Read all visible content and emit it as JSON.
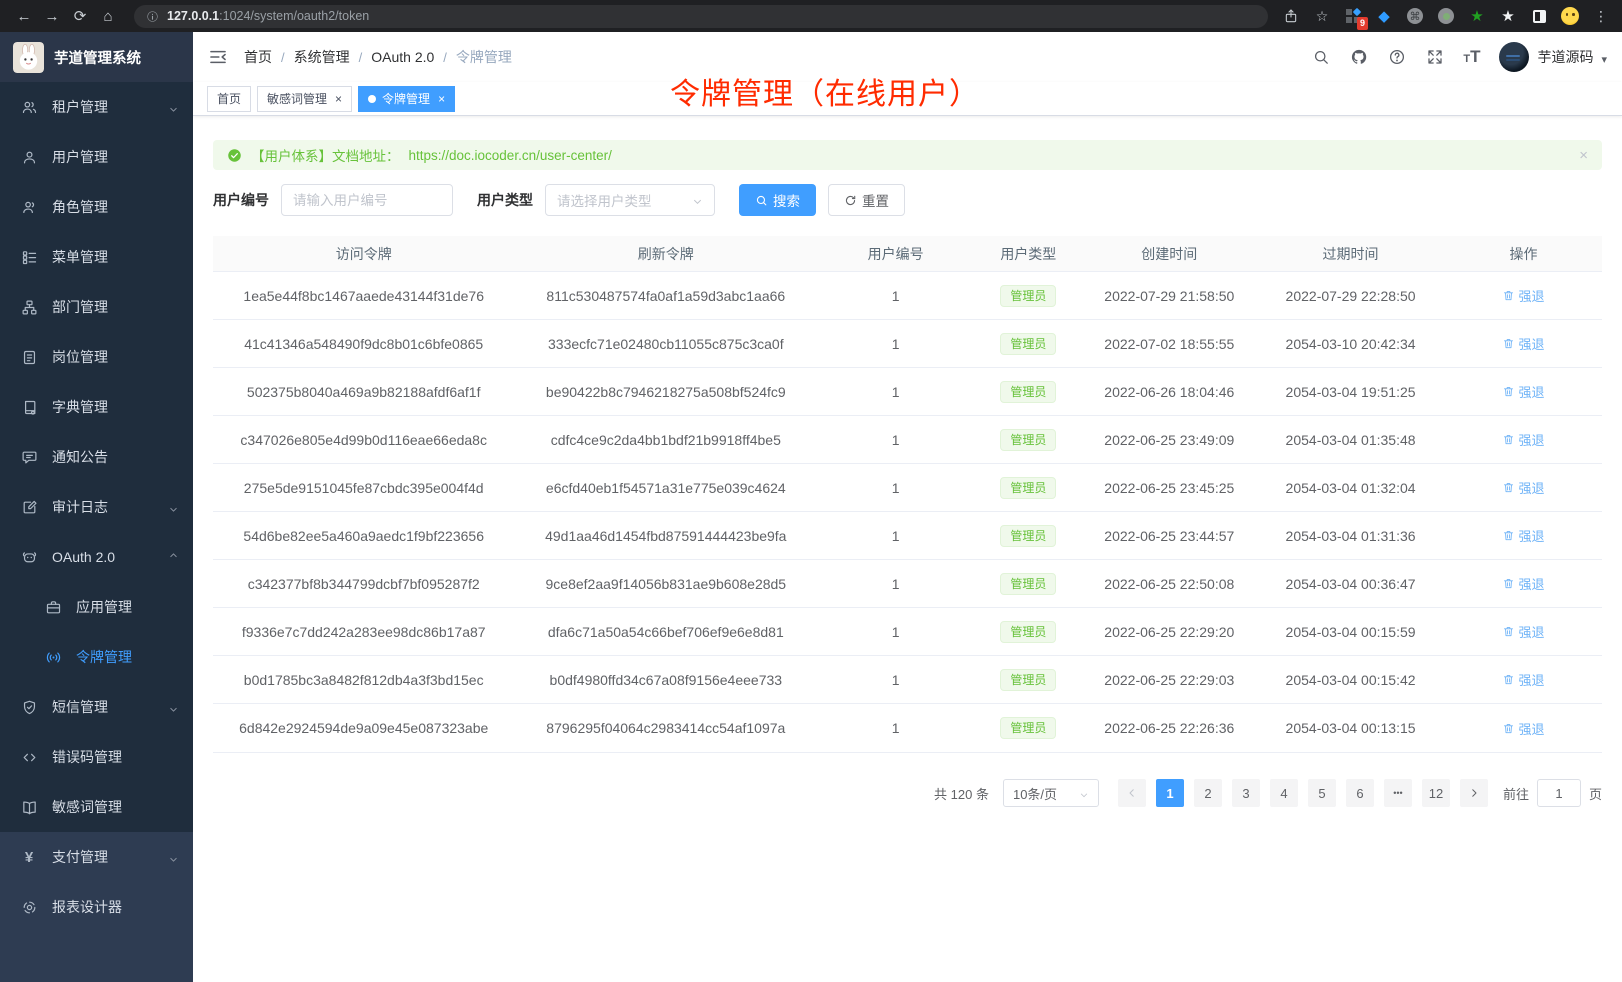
{
  "browser": {
    "url_host": "127.0.0.1",
    "url_rest": ":1024/system/oauth2/token",
    "extension_badge": "9"
  },
  "sidebar": {
    "logo_title": "芋道管理系统",
    "menu": [
      {
        "icon": "tenant-users-icon",
        "label": "租户管理",
        "chevron": "down"
      },
      {
        "icon": "user-icon",
        "label": "用户管理"
      },
      {
        "icon": "role-icon",
        "label": "角色管理"
      },
      {
        "icon": "menu-tree-icon",
        "label": "菜单管理"
      },
      {
        "icon": "dept-org-icon",
        "label": "部门管理"
      },
      {
        "icon": "post-badge-icon",
        "label": "岗位管理"
      },
      {
        "icon": "dict-book-icon",
        "label": "字典管理"
      },
      {
        "icon": "notice-chat-icon",
        "label": "通知公告"
      },
      {
        "icon": "audit-edit-icon",
        "label": "审计日志",
        "chevron": "down"
      },
      {
        "icon": "oauth-robot-icon",
        "label": "OAuth 2.0",
        "chevron": "up"
      },
      {
        "icon": "app-briefcase-icon",
        "label": "应用管理",
        "child": true
      },
      {
        "icon": "token-broadcast-icon",
        "label": "令牌管理",
        "child": true,
        "active": true
      },
      {
        "icon": "sms-shield-icon",
        "label": "短信管理",
        "chevron": "down"
      },
      {
        "icon": "errcode-code-icon",
        "label": "错误码管理"
      },
      {
        "icon": "sensitive-book-icon",
        "label": "敏感词管理"
      },
      {
        "icon": "pay-yen-icon",
        "label": "支付管理",
        "chevron": "down",
        "section": "light"
      },
      {
        "icon": "report-ring-icon",
        "label": "报表设计器",
        "section": "light"
      }
    ]
  },
  "header": {
    "breadcrumbs": [
      "首页",
      "系统管理",
      "OAuth 2.0",
      "令牌管理"
    ],
    "username": "芋道源码"
  },
  "tabs": [
    {
      "label": "首页"
    },
    {
      "label": "敏感词管理",
      "closable": true
    },
    {
      "label": "令牌管理",
      "closable": true,
      "active": true
    }
  ],
  "annotation": "令牌管理（在线用户）",
  "alert": {
    "prefix": "【用户体系】文档地址：",
    "link": "https://doc.iocoder.cn/user-center/"
  },
  "filters": {
    "user_id_label": "用户编号",
    "user_id_placeholder": "请输入用户编号",
    "user_type_label": "用户类型",
    "user_type_placeholder": "请选择用户类型",
    "search_label": "搜索",
    "reset_label": "重置"
  },
  "table": {
    "columns": [
      "访问令牌",
      "刷新令牌",
      "用户编号",
      "用户类型",
      "创建时间",
      "过期时间",
      "操作"
    ],
    "action_label": "强退",
    "rows": [
      {
        "access": "1ea5e44f8bc1467aaede43144f31de76",
        "refresh": "811c530487574fa0af1a59d3abc1aa66",
        "user_id": "1",
        "user_type": "管理员",
        "created": "2022-07-29 21:58:50",
        "expires": "2022-07-29 22:28:50"
      },
      {
        "access": "41c41346a548490f9dc8b01c6bfe0865",
        "refresh": "333ecfc71e02480cb11055c875c3ca0f",
        "user_id": "1",
        "user_type": "管理员",
        "created": "2022-07-02 18:55:55",
        "expires": "2054-03-10 20:42:34"
      },
      {
        "access": "502375b8040a469a9b82188afdf6af1f",
        "refresh": "be90422b8c7946218275a508bf524fc9",
        "user_id": "1",
        "user_type": "管理员",
        "created": "2022-06-26 18:04:46",
        "expires": "2054-03-04 19:51:25"
      },
      {
        "access": "c347026e805e4d99b0d116eae66eda8c",
        "refresh": "cdfc4ce9c2da4bb1bdf21b9918ff4be5",
        "user_id": "1",
        "user_type": "管理员",
        "created": "2022-06-25 23:49:09",
        "expires": "2054-03-04 01:35:48"
      },
      {
        "access": "275e5de9151045fe87cbdc395e004f4d",
        "refresh": "e6cfd40eb1f54571a31e775e039c4624",
        "user_id": "1",
        "user_type": "管理员",
        "created": "2022-06-25 23:45:25",
        "expires": "2054-03-04 01:32:04"
      },
      {
        "access": "54d6be82ee5a460a9aedc1f9bf223656",
        "refresh": "49d1aa46d1454fbd87591444423be9fa",
        "user_id": "1",
        "user_type": "管理员",
        "created": "2022-06-25 23:44:57",
        "expires": "2054-03-04 01:31:36"
      },
      {
        "access": "c342377bf8b344799dcbf7bf095287f2",
        "refresh": "9ce8ef2aa9f14056b831ae9b608e28d5",
        "user_id": "1",
        "user_type": "管理员",
        "created": "2022-06-25 22:50:08",
        "expires": "2054-03-04 00:36:47"
      },
      {
        "access": "f9336e7c7dd242a283ee98dc86b17a87",
        "refresh": "dfa6c71a50a54c66bef706ef9e6e8d81",
        "user_id": "1",
        "user_type": "管理员",
        "created": "2022-06-25 22:29:20",
        "expires": "2054-03-04 00:15:59"
      },
      {
        "access": "b0d1785bc3a8482f812db4a3f3bd15ec",
        "refresh": "b0df4980ffd34c67a08f9156e4eee733",
        "user_id": "1",
        "user_type": "管理员",
        "created": "2022-06-25 22:29:03",
        "expires": "2054-03-04 00:15:42"
      },
      {
        "access": "6d842e2924594de9a09e45e087323abe",
        "refresh": "8796295f04064c2983414cc54af1097a",
        "user_id": "1",
        "user_type": "管理员",
        "created": "2022-06-25 22:26:36",
        "expires": "2054-03-04 00:13:15"
      }
    ]
  },
  "pagination": {
    "total_label": "共 120 条",
    "page_size": "10条/页",
    "pages": [
      "1",
      "2",
      "3",
      "4",
      "5",
      "6",
      "...",
      "12"
    ],
    "active_page": "1",
    "goto_label": "前往",
    "goto_value": "1",
    "goto_suffix": "页"
  },
  "colors": {
    "accent": "#409eff",
    "success": "#67c23a",
    "sidebar_bg": "#1f2d3d",
    "annotation": "#ff2b00"
  }
}
